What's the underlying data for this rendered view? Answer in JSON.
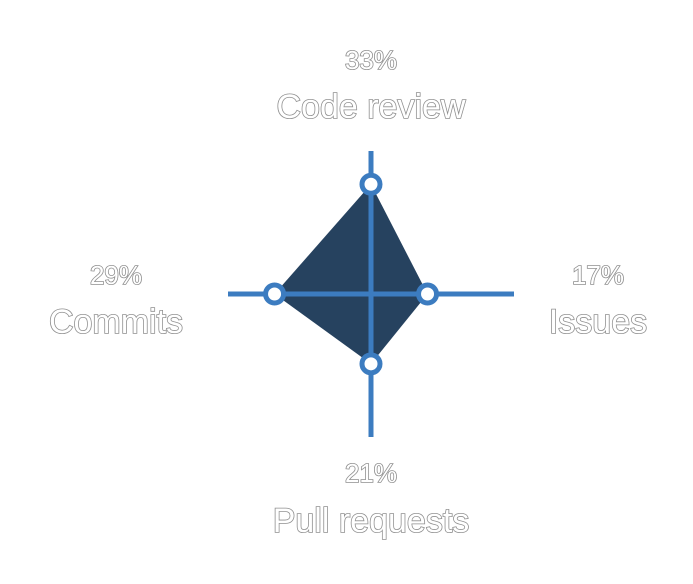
{
  "chart_data": {
    "type": "radar",
    "colors": {
      "area": "#26425F",
      "axis": "#3C7CC0",
      "marker_fill": "#ffffff",
      "label_fill": "#ffffff",
      "label_outline": "#8f8f8f"
    },
    "rmax": 43,
    "axes": [
      {
        "name": "Code review",
        "value": 33,
        "value_label": "33%",
        "direction": "up"
      },
      {
        "name": "Issues",
        "value": 17,
        "value_label": "17%",
        "direction": "right"
      },
      {
        "name": "Pull requests",
        "value": 21,
        "value_label": "21%",
        "direction": "down"
      },
      {
        "name": "Commits",
        "value": 29,
        "value_label": "29%",
        "direction": "left"
      }
    ]
  }
}
